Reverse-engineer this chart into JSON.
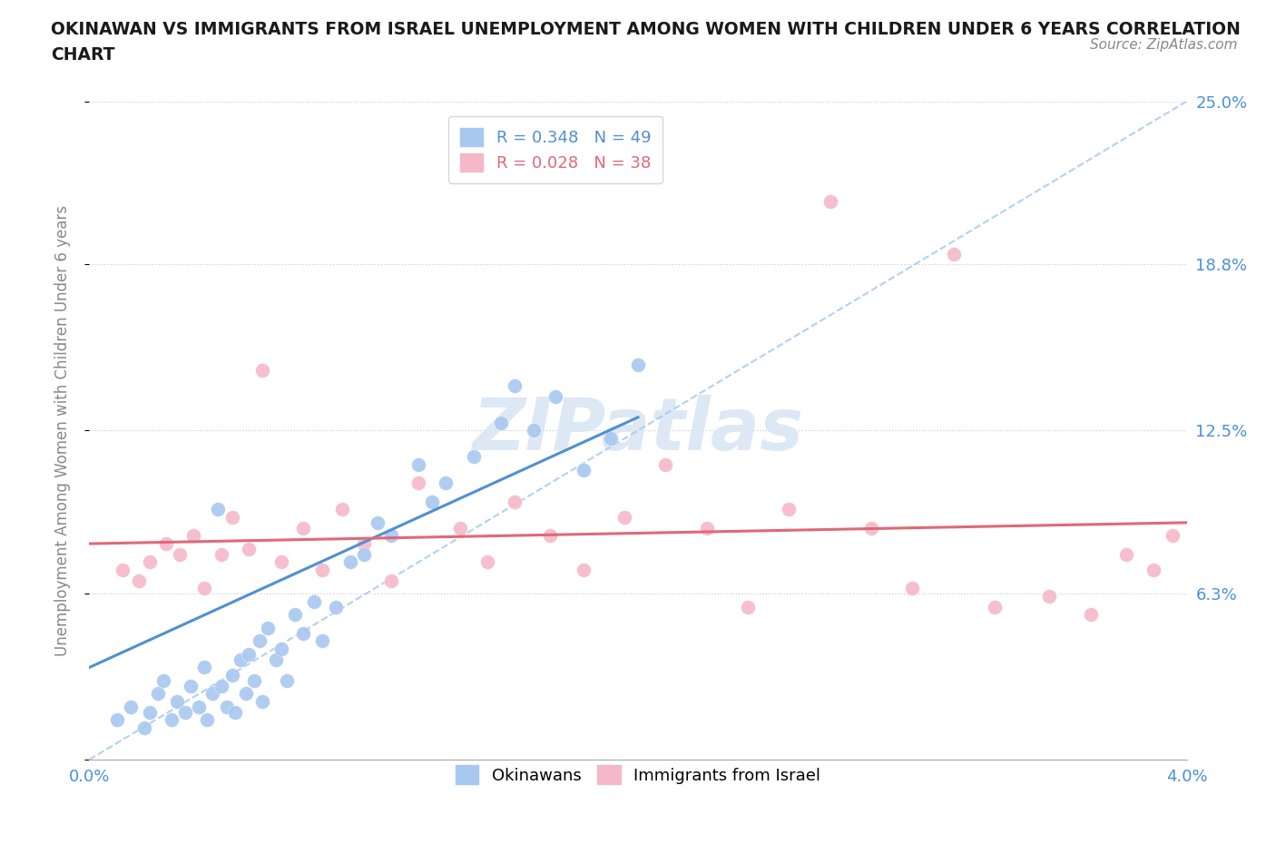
{
  "title_line1": "OKINAWAN VS IMMIGRANTS FROM ISRAEL UNEMPLOYMENT AMONG WOMEN WITH CHILDREN UNDER 6 YEARS CORRELATION",
  "title_line2": "CHART",
  "source": "Source: ZipAtlas.com",
  "ylabel": "Unemployment Among Women with Children Under 6 years",
  "xlim": [
    0.0,
    4.0
  ],
  "ylim": [
    0.0,
    25.0
  ],
  "ytick_values": [
    0.0,
    6.3,
    12.5,
    18.8,
    25.0
  ],
  "ytick_labels": [
    "",
    "6.3%",
    "12.5%",
    "18.8%",
    "25.0%"
  ],
  "xtick_values": [
    0.0,
    0.5,
    1.0,
    1.5,
    2.0,
    2.5,
    3.0,
    3.5,
    4.0
  ],
  "xtick_labels": [
    "0.0%",
    "",
    "",
    "",
    "",
    "",
    "",
    "",
    "4.0%"
  ],
  "blue_R": 0.348,
  "blue_N": 49,
  "pink_R": 0.028,
  "pink_N": 38,
  "blue_color": "#a8c8f0",
  "pink_color": "#f5b8c8",
  "blue_line_color": "#5090d0",
  "pink_line_color": "#e06878",
  "ref_line_color": "#aaccee",
  "watermark_color": "#dde8f5",
  "blue_scatter_x": [
    0.1,
    0.15,
    0.2,
    0.22,
    0.25,
    0.27,
    0.3,
    0.32,
    0.35,
    0.37,
    0.4,
    0.42,
    0.43,
    0.45,
    0.47,
    0.48,
    0.5,
    0.52,
    0.53,
    0.55,
    0.57,
    0.58,
    0.6,
    0.62,
    0.63,
    0.65,
    0.68,
    0.7,
    0.72,
    0.75,
    0.78,
    0.82,
    0.85,
    0.9,
    0.95,
    1.0,
    1.05,
    1.1,
    1.2,
    1.25,
    1.3,
    1.4,
    1.5,
    1.55,
    1.62,
    1.7,
    1.8,
    1.9,
    2.0
  ],
  "blue_scatter_y": [
    1.5,
    2.0,
    1.2,
    1.8,
    2.5,
    3.0,
    1.5,
    2.2,
    1.8,
    2.8,
    2.0,
    3.5,
    1.5,
    2.5,
    9.5,
    2.8,
    2.0,
    3.2,
    1.8,
    3.8,
    2.5,
    4.0,
    3.0,
    4.5,
    2.2,
    5.0,
    3.8,
    4.2,
    3.0,
    5.5,
    4.8,
    6.0,
    4.5,
    5.8,
    7.5,
    7.8,
    9.0,
    8.5,
    11.2,
    9.8,
    10.5,
    11.5,
    12.8,
    14.2,
    12.5,
    13.8,
    11.0,
    12.2,
    15.0
  ],
  "pink_scatter_x": [
    0.12,
    0.18,
    0.22,
    0.28,
    0.33,
    0.38,
    0.42,
    0.48,
    0.52,
    0.58,
    0.63,
    0.7,
    0.78,
    0.85,
    0.92,
    1.0,
    1.1,
    1.2,
    1.35,
    1.45,
    1.55,
    1.68,
    1.8,
    1.95,
    2.1,
    2.25,
    2.4,
    2.55,
    2.7,
    2.85,
    3.0,
    3.15,
    3.3,
    3.5,
    3.65,
    3.78,
    3.88,
    3.95
  ],
  "pink_scatter_y": [
    7.2,
    6.8,
    7.5,
    8.2,
    7.8,
    8.5,
    6.5,
    7.8,
    9.2,
    8.0,
    14.8,
    7.5,
    8.8,
    7.2,
    9.5,
    8.2,
    6.8,
    10.5,
    8.8,
    7.5,
    9.8,
    8.5,
    7.2,
    9.2,
    11.2,
    8.8,
    5.8,
    9.5,
    21.2,
    8.8,
    6.5,
    19.2,
    5.8,
    6.2,
    5.5,
    7.8,
    7.2,
    8.5
  ],
  "blue_trend_x0": 0.0,
  "blue_trend_x1": 2.0,
  "blue_trend_y0": 3.5,
  "blue_trend_y1": 13.0,
  "pink_trend_x0": 0.0,
  "pink_trend_x1": 4.0,
  "pink_trend_y0": 8.2,
  "pink_trend_y1": 9.0
}
